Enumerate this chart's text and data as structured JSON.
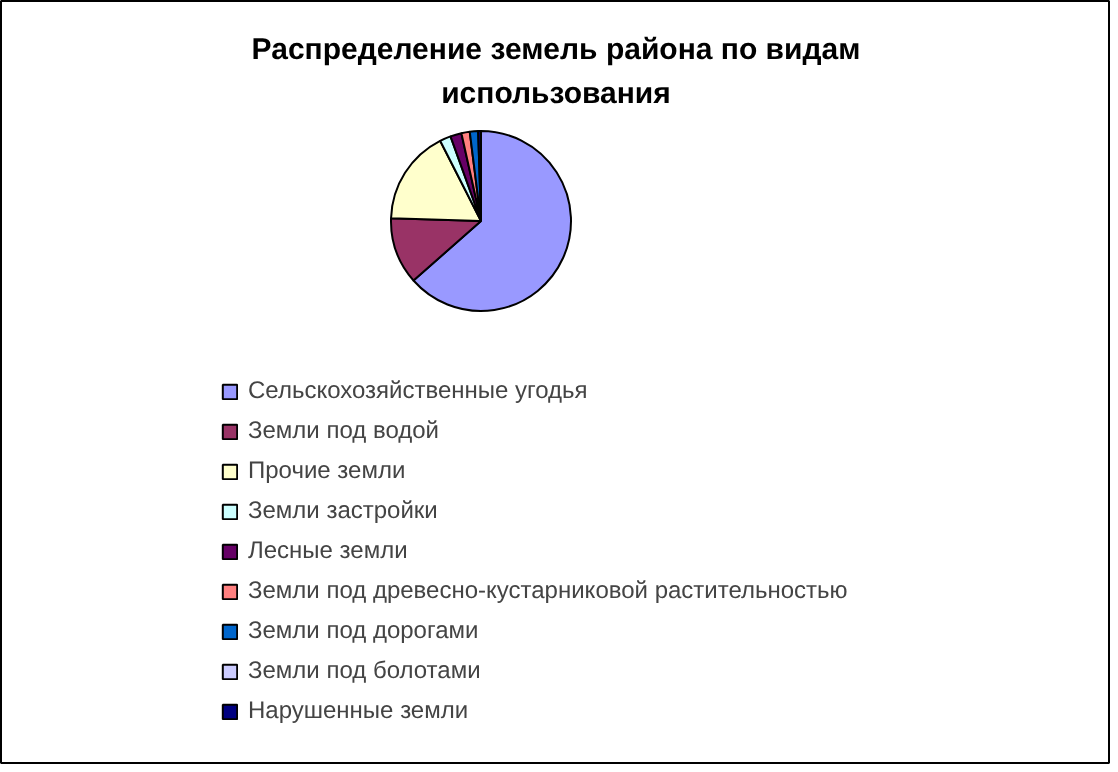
{
  "chart_data": {
    "type": "pie",
    "title": "Распределение земель района по видам использования",
    "categories": [
      "Сельскохозяйственные угодья",
      "Земли под водой",
      "Прочие земли",
      "Земли застройки",
      "Лесные земли",
      "Земли под древесно-кустарниковой растительностью",
      "Земли под дорогами",
      "Земли под болотами",
      "Нарушенные земли"
    ],
    "values": [
      63.5,
      12,
      17,
      2,
      2,
      1.5,
      1.5,
      null,
      0.5
    ],
    "colors": [
      "#9999ff",
      "#993366",
      "#ffffcc",
      "#ccffff",
      "#660066",
      "#ff8080",
      "#0066cc",
      "#ccccff",
      "#000080"
    ],
    "legend": "bottom"
  }
}
